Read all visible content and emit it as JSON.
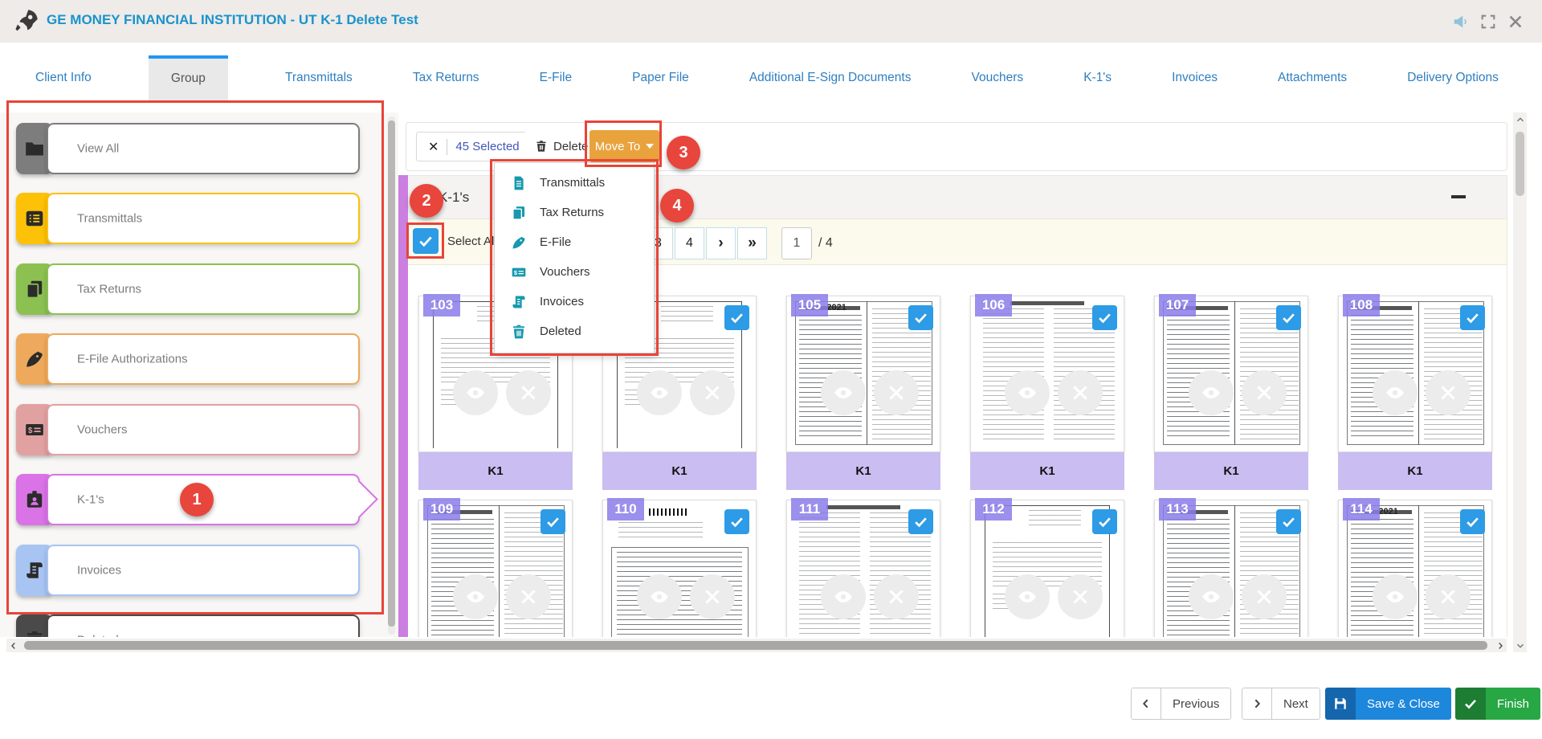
{
  "header": {
    "title": "GE MONEY FINANCIAL INSTITUTION - UT K-1 Delete Test"
  },
  "tabs": {
    "active": "Group",
    "items": [
      {
        "label": "Client Info"
      },
      {
        "label": "Group"
      },
      {
        "label": "Transmittals"
      },
      {
        "label": "Tax Returns"
      },
      {
        "label": "E-File"
      },
      {
        "label": "Paper File"
      },
      {
        "label": "Additional E-Sign Documents"
      },
      {
        "label": "Vouchers"
      },
      {
        "label": "K-1's"
      },
      {
        "label": "Invoices"
      },
      {
        "label": "Attachments"
      },
      {
        "label": "Delivery Options"
      }
    ]
  },
  "sidebar": {
    "items": [
      {
        "label": "View All",
        "icon": "folder",
        "color": "#7d7d7d",
        "selected": false
      },
      {
        "label": "Transmittals",
        "icon": "list",
        "color": "#fdc107",
        "selected": false
      },
      {
        "label": "Tax Returns",
        "icon": "copy",
        "color": "#8cc152",
        "selected": false
      },
      {
        "label": "E-File Authorizations",
        "icon": "pen",
        "color": "#efa95c",
        "selected": false
      },
      {
        "label": "Vouchers",
        "icon": "voucher",
        "color": "#e2a1a1",
        "selected": false
      },
      {
        "label": "K-1's",
        "icon": "badge",
        "color": "#d973e6",
        "selected": true
      },
      {
        "label": "Invoices",
        "icon": "scroll",
        "color": "#a8c4f2",
        "selected": false
      },
      {
        "label": "Deleted",
        "icon": "trash",
        "color": "#4a4a4a",
        "selected": false
      }
    ]
  },
  "toolbar": {
    "clear_glyph": "✕",
    "selected_label": "45 Selected",
    "delete_label": "Delete",
    "move_to_label": "Move To"
  },
  "dropdown": {
    "items": [
      {
        "label": "Transmittals",
        "icon": "file"
      },
      {
        "label": "Tax Returns",
        "icon": "copy"
      },
      {
        "label": "E-File",
        "icon": "pen"
      },
      {
        "label": "Vouchers",
        "icon": "voucher"
      },
      {
        "label": "Invoices",
        "icon": "scroll"
      },
      {
        "label": "Deleted",
        "icon": "trash"
      }
    ]
  },
  "group_section": {
    "title": "K-1's",
    "select_all_label": "Select All"
  },
  "pagination": {
    "visible_pages": [
      "3",
      "4"
    ],
    "next_glyph": "›",
    "last_glyph": "»",
    "current_page": "1",
    "total_label": "/ 4"
  },
  "cards": {
    "tag_label": "K1",
    "items": [
      {
        "number": "103",
        "variant": "letter"
      },
      {
        "number": "104",
        "variant": "letter"
      },
      {
        "number": "105",
        "variant": "form",
        "year": "2021"
      },
      {
        "number": "106",
        "variant": "list"
      },
      {
        "number": "107",
        "variant": "form"
      },
      {
        "number": "108",
        "variant": "form"
      },
      {
        "number": "109",
        "variant": "form"
      },
      {
        "number": "110",
        "variant": "barcode"
      },
      {
        "number": "111",
        "variant": "list"
      },
      {
        "number": "112",
        "variant": "letter"
      },
      {
        "number": "113",
        "variant": "form"
      },
      {
        "number": "114",
        "variant": "form",
        "year": "2021"
      }
    ]
  },
  "annotations": {
    "circles": [
      {
        "label": "1"
      },
      {
        "label": "2"
      },
      {
        "label": "3"
      },
      {
        "label": "4"
      }
    ]
  },
  "footer": {
    "previous_label": "Previous",
    "next_label": "Next",
    "save_close_label": "Save & Close",
    "finish_label": "Finish"
  },
  "colors": {
    "annotation_red": "#e8443a",
    "title_blue": "#1a93cc",
    "tab_blue": "#2e7fc0",
    "active_tab_accent": "#2196f3",
    "selected_text_blue": "#4156b8",
    "move_to_orange": "#e9a33d",
    "dropdown_icon_teal": "#1799ae",
    "group_strip_purple": "#cb7fe0",
    "card_badge_purple": "#8a7de9",
    "k1_bar_purple": "#cabdf1",
    "checkbox_blue": "#2d9be5",
    "save_close_blue": "#1d87dc",
    "finish_green": "#28a745"
  }
}
